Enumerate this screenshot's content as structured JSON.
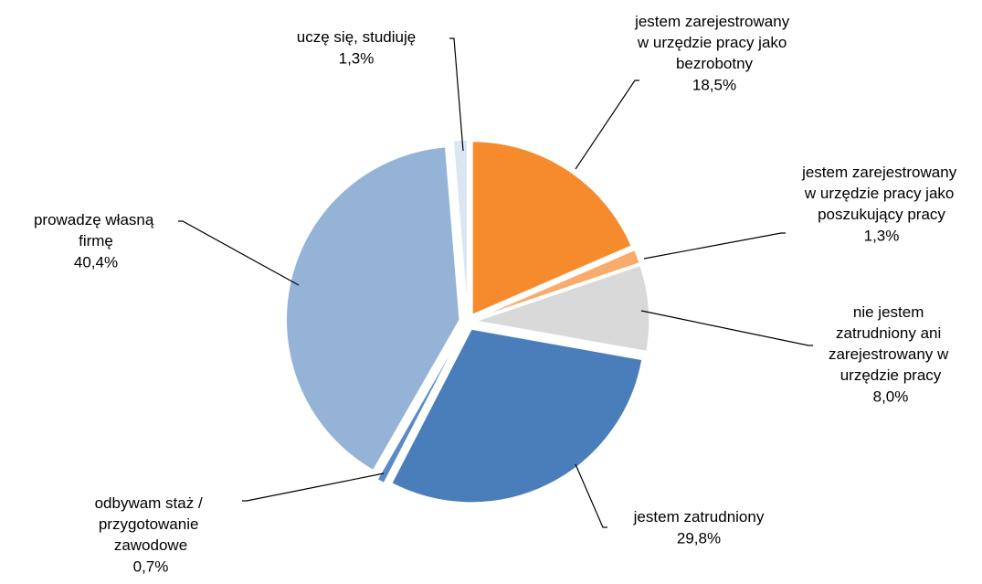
{
  "chart_data": {
    "type": "pie",
    "categories": [
      "jestem zarejestrowany w urzędzie pracy jako bezrobotny",
      "jestem zarejestrowany w urzędzie pracy jako poszukujący pracy",
      "nie jestem zatrudniony ani zarejestrowany w urzędzie pracy",
      "jestem zatrudniony",
      "odbywam staż / przygotowanie zawodowe",
      "prowadzę własną firmę",
      "uczę się, studiuję"
    ],
    "values": [
      18.5,
      1.3,
      8.0,
      29.8,
      0.7,
      40.4,
      1.3
    ],
    "value_labels": [
      "18,5%",
      "1,3%",
      "8,0%",
      "29,8%",
      "0,7%",
      "40,4%",
      "1,3%"
    ],
    "colors": [
      "#f68b2e",
      "#f9ab6b",
      "#d9d9d9",
      "#4a7ebb",
      "#5a8ac6",
      "#95b3d7",
      "#dce6f2"
    ]
  }
}
